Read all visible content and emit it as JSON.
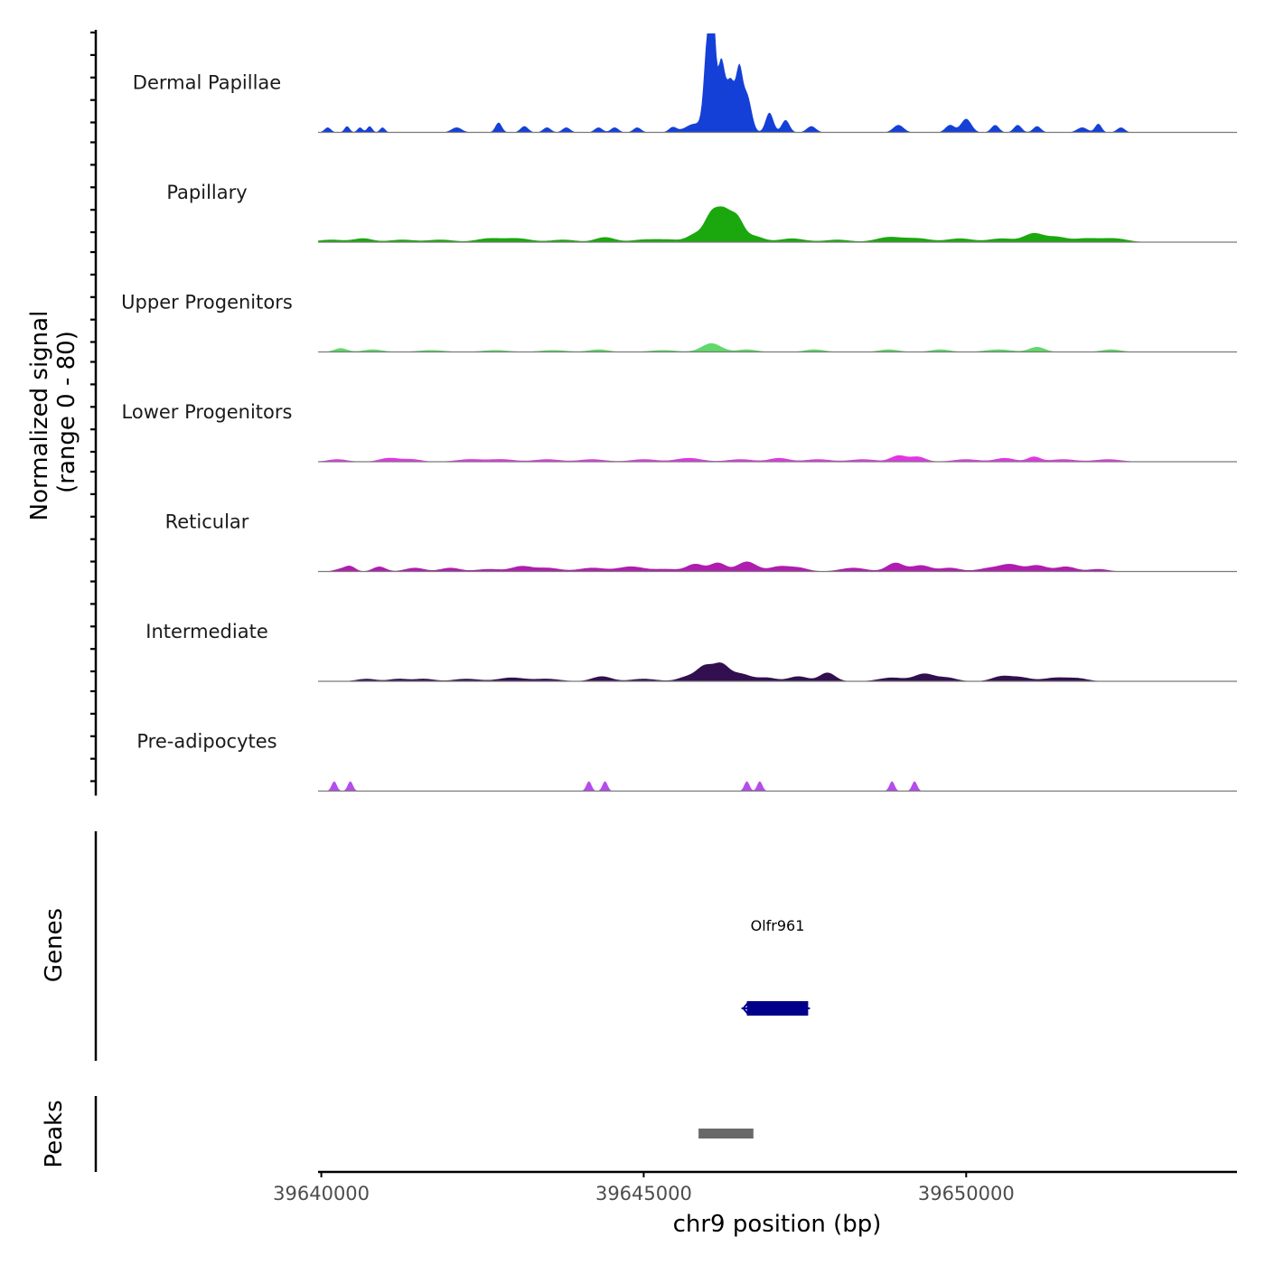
{
  "chart_data": {
    "type": "area",
    "title": "",
    "ylabel_line1": "Normalized signal",
    "ylabel_line2": "(range 0 - 80)",
    "xlabel": "chr9 position (bp)",
    "xlim": [
      39639950,
      39654200
    ],
    "ylim": [
      0,
      80
    ],
    "xticks": [
      39640000,
      39645000,
      39650000
    ],
    "xtick_labels": [
      "39640000",
      "39645000",
      "39650000"
    ],
    "series": [
      {
        "name": "Dermal Papillae",
        "color": "#1440d8",
        "peaks": [
          [
            39640100,
            4,
            50
          ],
          [
            39640400,
            5,
            40
          ],
          [
            39640600,
            4,
            40
          ],
          [
            39640750,
            5,
            40
          ],
          [
            39640950,
            4,
            40
          ],
          [
            39642100,
            4,
            80
          ],
          [
            39642750,
            8,
            50
          ],
          [
            39643150,
            5,
            60
          ],
          [
            39643500,
            4,
            60
          ],
          [
            39643800,
            4,
            60
          ],
          [
            39644300,
            4,
            60
          ],
          [
            39644550,
            4,
            60
          ],
          [
            39644900,
            4,
            60
          ],
          [
            39645450,
            4,
            60
          ],
          [
            39645800,
            7,
            150
          ],
          [
            39645950,
            14,
            50
          ],
          [
            39646000,
            68,
            50
          ],
          [
            39646080,
            80,
            35
          ],
          [
            39646200,
            58,
            60
          ],
          [
            39646350,
            40,
            60
          ],
          [
            39646480,
            45,
            50
          ],
          [
            39646600,
            30,
            70
          ],
          [
            39646950,
            16,
            60
          ],
          [
            39647200,
            10,
            60
          ],
          [
            39647600,
            5,
            70
          ],
          [
            39648950,
            6,
            80
          ],
          [
            39649750,
            6,
            70
          ],
          [
            39650000,
            11,
            80
          ],
          [
            39650450,
            6,
            60
          ],
          [
            39650800,
            6,
            60
          ],
          [
            39651100,
            5,
            60
          ],
          [
            39651800,
            4,
            80
          ],
          [
            39652050,
            7,
            50
          ],
          [
            39652400,
            4,
            60
          ]
        ]
      },
      {
        "name": "Papillary",
        "color": "#1aa80e",
        "peaks": [
          [
            39640150,
            2,
            200
          ],
          [
            39640650,
            3,
            150
          ],
          [
            39641250,
            2,
            200
          ],
          [
            39641850,
            2,
            200
          ],
          [
            39642600,
            3,
            200
          ],
          [
            39643050,
            3,
            200
          ],
          [
            39643750,
            2,
            200
          ],
          [
            39644400,
            4,
            150
          ],
          [
            39645000,
            2,
            200
          ],
          [
            39645400,
            2,
            200
          ],
          [
            39645800,
            6,
            120
          ],
          [
            39646050,
            21,
            110
          ],
          [
            39646250,
            22,
            110
          ],
          [
            39646450,
            17,
            100
          ],
          [
            39646700,
            5,
            150
          ],
          [
            39647300,
            3,
            200
          ],
          [
            39648000,
            2,
            200
          ],
          [
            39648800,
            4,
            200
          ],
          [
            39649250,
            3,
            200
          ],
          [
            39649900,
            3,
            200
          ],
          [
            39650550,
            3,
            200
          ],
          [
            39651050,
            7,
            150
          ],
          [
            39651400,
            4,
            150
          ],
          [
            39651850,
            3,
            200
          ],
          [
            39652300,
            3,
            200
          ]
        ]
      },
      {
        "name": "Upper Progenitors",
        "color": "#60d86a",
        "peaks": [
          [
            39640300,
            3,
            100
          ],
          [
            39640800,
            2,
            150
          ],
          [
            39641700,
            1.5,
            200
          ],
          [
            39642700,
            1.5,
            200
          ],
          [
            39643600,
            1.5,
            200
          ],
          [
            39644300,
            2,
            150
          ],
          [
            39645300,
            1.5,
            200
          ],
          [
            39646050,
            7,
            150
          ],
          [
            39646600,
            2,
            150
          ],
          [
            39647650,
            2,
            150
          ],
          [
            39648800,
            2,
            150
          ],
          [
            39649600,
            2,
            150
          ],
          [
            39650500,
            2,
            200
          ],
          [
            39651100,
            4,
            120
          ],
          [
            39652250,
            2,
            150
          ]
        ]
      },
      {
        "name": "Lower Progenitors",
        "color": "#e236e4",
        "peaks": [
          [
            39640250,
            2,
            150
          ],
          [
            39641050,
            3,
            150
          ],
          [
            39641400,
            2,
            150
          ],
          [
            39642300,
            2,
            200
          ],
          [
            39642800,
            2,
            200
          ],
          [
            39643500,
            2,
            200
          ],
          [
            39644200,
            2,
            200
          ],
          [
            39645000,
            2,
            200
          ],
          [
            39645700,
            3,
            200
          ],
          [
            39646500,
            2,
            200
          ],
          [
            39647100,
            3,
            150
          ],
          [
            39647700,
            2,
            200
          ],
          [
            39648400,
            2,
            200
          ],
          [
            39648950,
            5,
            120
          ],
          [
            39649250,
            4,
            120
          ],
          [
            39650000,
            2,
            200
          ],
          [
            39650600,
            3,
            150
          ],
          [
            39651050,
            4,
            100
          ],
          [
            39651500,
            2,
            200
          ],
          [
            39652200,
            2,
            200
          ]
        ]
      },
      {
        "name": "Reticular",
        "color": "#b01cb0",
        "peaks": [
          [
            39640300,
            2,
            100
          ],
          [
            39640450,
            4,
            80
          ],
          [
            39640900,
            4,
            100
          ],
          [
            39641450,
            3,
            150
          ],
          [
            39642000,
            3,
            150
          ],
          [
            39642600,
            2,
            200
          ],
          [
            39643100,
            4,
            150
          ],
          [
            39643500,
            3,
            200
          ],
          [
            39644200,
            3,
            200
          ],
          [
            39644800,
            4,
            200
          ],
          [
            39645350,
            2,
            200
          ],
          [
            39645800,
            6,
            130
          ],
          [
            39646150,
            7,
            120
          ],
          [
            39646600,
            8,
            150
          ],
          [
            39647100,
            4,
            150
          ],
          [
            39647400,
            3,
            150
          ],
          [
            39648250,
            3,
            200
          ],
          [
            39648900,
            7,
            130
          ],
          [
            39649300,
            5,
            150
          ],
          [
            39649750,
            3,
            150
          ],
          [
            39650400,
            3,
            200
          ],
          [
            39650700,
            5,
            150
          ],
          [
            39651100,
            5,
            150
          ],
          [
            39651550,
            4,
            150
          ],
          [
            39652050,
            2,
            150
          ]
        ]
      },
      {
        "name": "Intermediate",
        "color": "#32104f",
        "peaks": [
          [
            39640700,
            2,
            150
          ],
          [
            39641200,
            2,
            150
          ],
          [
            39641600,
            2,
            150
          ],
          [
            39642250,
            2,
            200
          ],
          [
            39642950,
            3,
            200
          ],
          [
            39643500,
            2,
            200
          ],
          [
            39644350,
            4,
            150
          ],
          [
            39645000,
            2,
            200
          ],
          [
            39645700,
            4,
            150
          ],
          [
            39645950,
            11,
            120
          ],
          [
            39646200,
            13,
            120
          ],
          [
            39646500,
            6,
            150
          ],
          [
            39646900,
            3,
            150
          ],
          [
            39647400,
            4,
            150
          ],
          [
            39647850,
            7,
            120
          ],
          [
            39648850,
            3,
            200
          ],
          [
            39649350,
            6,
            150
          ],
          [
            39649700,
            3,
            150
          ],
          [
            39650550,
            4,
            150
          ],
          [
            39650850,
            3,
            150
          ],
          [
            39651400,
            3,
            200
          ],
          [
            39651750,
            2,
            150
          ]
        ]
      },
      {
        "name": "Pre-adipocytes",
        "color": "#b54ceb",
        "peaks": [
          [
            39640200,
            8,
            40
          ],
          [
            39640450,
            8,
            40
          ],
          [
            39644150,
            8,
            40
          ],
          [
            39644400,
            8,
            40
          ],
          [
            39646600,
            8,
            40
          ],
          [
            39646800,
            8,
            40
          ],
          [
            39648850,
            8,
            40
          ],
          [
            39649200,
            8,
            40
          ]
        ]
      }
    ],
    "genes": [
      {
        "name": "Olfr961",
        "start": 39646600,
        "end": 39647550,
        "strand": "-",
        "color": "#00008b"
      }
    ],
    "genes_label": "Genes",
    "peak_regions": [
      {
        "start": 39645850,
        "end": 39646700,
        "color": "#696969"
      }
    ],
    "peaks_label": "Peaks"
  }
}
